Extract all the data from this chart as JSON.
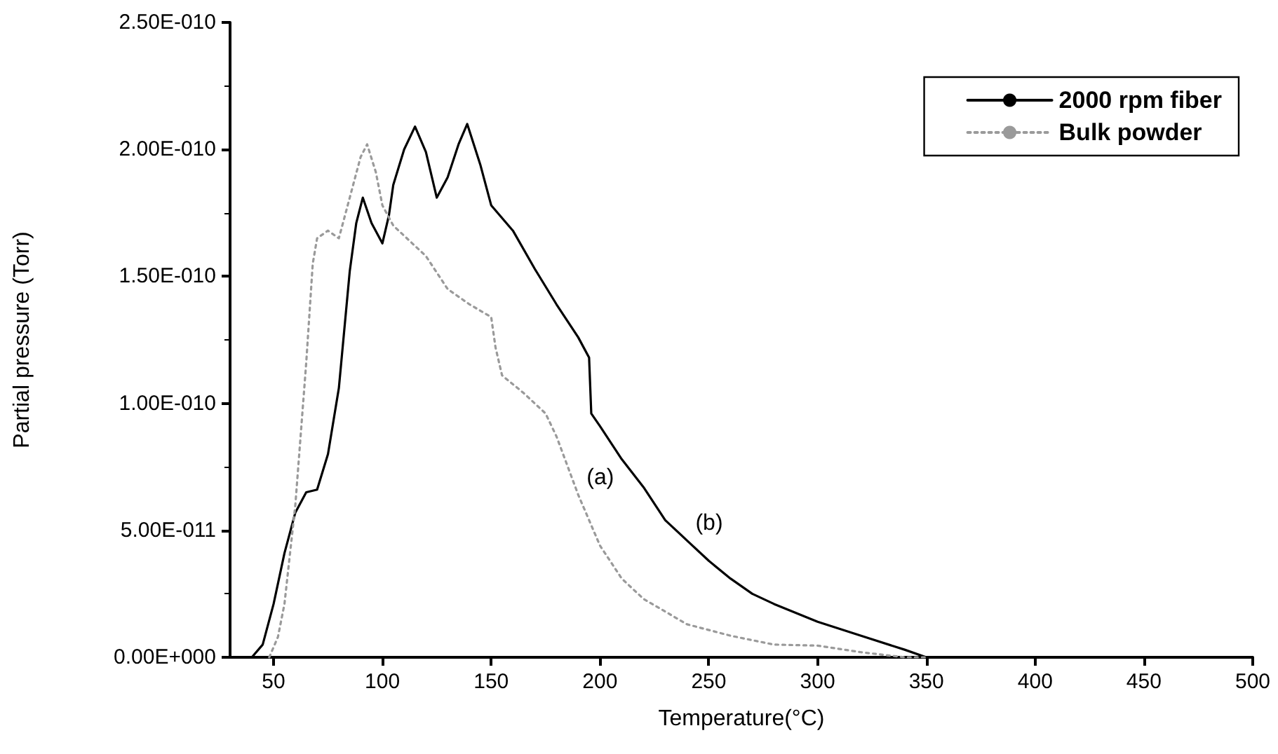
{
  "chart_data": {
    "type": "line",
    "xlabel": "Temperature(°C)",
    "ylabel": "Partial pressure (Torr)",
    "xlim": [
      30,
      500
    ],
    "xticks": [
      50,
      100,
      150,
      200,
      250,
      300,
      350,
      400,
      450,
      500
    ],
    "ylim": [
      0,
      2.5e-10
    ],
    "yticks": [
      {
        "value": 0,
        "label": "0.00E+000"
      },
      {
        "value": 5e-11,
        "label": "5.00E-011"
      },
      {
        "value": 1e-10,
        "label": "1.00E-010"
      },
      {
        "value": 1.5e-10,
        "label": "1.50E-010"
      },
      {
        "value": 2e-10,
        "label": "2.00E-010"
      },
      {
        "value": 2.5e-10,
        "label": "2.50E-010"
      }
    ],
    "grid": false,
    "legend": "top right",
    "marker": "none",
    "series": [
      {
        "name": "2000 rpm fiber",
        "color": "#000000",
        "line_style": "solid",
        "x": [
          30,
          40,
          45,
          50,
          55,
          60,
          65,
          70,
          75,
          80,
          85,
          88,
          91,
          95,
          100,
          103,
          105,
          110,
          115,
          120,
          125,
          130,
          135,
          139,
          145,
          150,
          160,
          170,
          180,
          190,
          195,
          196,
          200,
          210,
          220,
          230,
          240,
          250,
          260,
          270,
          280,
          300,
          320,
          340,
          350
        ],
        "values": [
          0,
          0,
          5e-12,
          2.1e-11,
          4.1e-11,
          5.7e-11,
          6.5e-11,
          6.6e-11,
          8e-11,
          1.06e-10,
          1.52e-10,
          1.71e-10,
          1.81e-10,
          1.71e-10,
          1.63e-10,
          1.74e-10,
          1.86e-10,
          2e-10,
          2.09e-10,
          1.99e-10,
          1.81e-10,
          1.89e-10,
          2.02e-10,
          2.1e-10,
          1.94e-10,
          1.78e-10,
          1.68e-10,
          1.53e-10,
          1.39e-10,
          1.26e-10,
          1.18e-10,
          9.6e-11,
          9.1e-11,
          7.8e-11,
          6.7e-11,
          5.4e-11,
          4.6e-11,
          3.8e-11,
          3.1e-11,
          2.5e-11,
          2.1e-11,
          1.4e-11,
          8.5e-12,
          3e-12,
          0
        ]
      },
      {
        "name": "Bulk powder",
        "color": "#9a9a9a",
        "line_style": "dotted",
        "x": [
          48,
          52,
          55,
          60,
          65,
          68,
          70,
          75,
          80,
          85,
          90,
          93,
          97,
          100,
          105,
          110,
          120,
          130,
          140,
          150,
          152,
          155,
          165,
          175,
          180,
          190,
          200,
          210,
          220,
          240,
          260,
          280,
          300,
          320,
          340,
          350
        ],
        "values": [
          0,
          8e-12,
          2.1e-11,
          6e-11,
          1.16e-10,
          1.55e-10,
          1.65e-10,
          1.68e-10,
          1.65e-10,
          1.81e-10,
          1.97e-10,
          2.02e-10,
          1.91e-10,
          1.78e-10,
          1.7e-10,
          1.66e-10,
          1.58e-10,
          1.45e-10,
          1.39e-10,
          1.34e-10,
          1.22e-10,
          1.11e-10,
          1.04e-10,
          9.6e-11,
          8.7e-11,
          6.4e-11,
          4.4e-11,
          3.1e-11,
          2.3e-11,
          1.3e-11,
          8.5e-12,
          5e-12,
          4.6e-12,
          2e-12,
          0,
          0
        ]
      }
    ],
    "annotations": [
      {
        "text": "(a)",
        "x": 190,
        "y": 6.4e-11
      },
      {
        "text": "(b)",
        "x": 240,
        "y": 4.6e-11
      }
    ]
  }
}
